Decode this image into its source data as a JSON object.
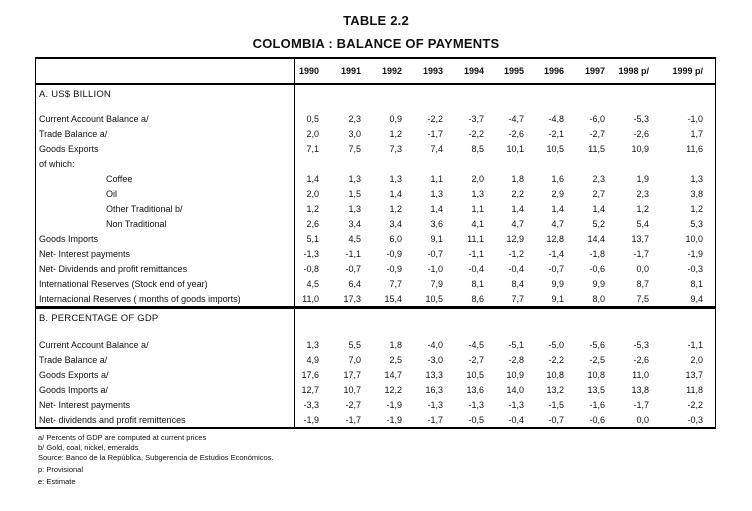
{
  "page": {
    "title_line1": "TABLE 2.2",
    "title_line2": "COLOMBIA : BALANCE OF PAYMENTS"
  },
  "table": {
    "col_headers": [
      "1990",
      "1991",
      "1992",
      "1993",
      "1994",
      "1995",
      "1996",
      "1997",
      "1998 p/",
      "1999 p/"
    ],
    "sections": [
      {
        "heading": "A. US$ BILLION",
        "rows": [
          {
            "label": "Current Account Balance  a/",
            "indent": 0,
            "values": [
              "0,5",
              "2,3",
              "0,9",
              "-2,2",
              "-3,7",
              "-4,7",
              "-4,8",
              "-6,0",
              "-5,3",
              "-1,0"
            ]
          },
          {
            "label": "Trade Balance  a/",
            "indent": 0,
            "values": [
              "2,0",
              "3,0",
              "1,2",
              "-1,7",
              "-2,2",
              "-2,6",
              "-2,1",
              "-2,7",
              "-2,6",
              "1,7"
            ]
          },
          {
            "label": "Goods Exports",
            "indent": 0,
            "values": [
              "7,1",
              "7,5",
              "7,3",
              "7,4",
              "8,5",
              "10,1",
              "10,5",
              "11,5",
              "10,9",
              "11,6"
            ]
          },
          {
            "label": "of which:",
            "indent": 0,
            "values": []
          },
          {
            "label": "Coffee",
            "indent": 1,
            "values": [
              "1,4",
              "1,3",
              "1,3",
              "1,1",
              "2,0",
              "1,8",
              "1,6",
              "2,3",
              "1,9",
              "1,3"
            ]
          },
          {
            "label": "Oil",
            "indent": 1,
            "values": [
              "2,0",
              "1,5",
              "1,4",
              "1,3",
              "1,3",
              "2,2",
              "2,9",
              "2,7",
              "2,3",
              "3,8"
            ]
          },
          {
            "label": "Other Traditional  b/",
            "indent": 1,
            "values": [
              "1,2",
              "1,3",
              "1,2",
              "1,4",
              "1,1",
              "1,4",
              "1,4",
              "1,4",
              "1,2",
              "1,2"
            ]
          },
          {
            "label": "Non Traditional",
            "indent": 1,
            "values": [
              "2,6",
              "3,4",
              "3,4",
              "3,6",
              "4,1",
              "4,7",
              "4,7",
              "5,2",
              "5,4",
              "5,3"
            ]
          },
          {
            "label": "Goods Imports",
            "indent": 0,
            "values": [
              "5,1",
              "4,5",
              "6,0",
              "9,1",
              "11,1",
              "12,9",
              "12,8",
              "14,4",
              "13,7",
              "10,0"
            ]
          },
          {
            "label": "Net- Interest payments",
            "indent": 0,
            "values": [
              "-1,3",
              "-1,1",
              "-0,9",
              "-0,7",
              "-1,1",
              "-1,2",
              "-1,4",
              "-1,8",
              "-1,7",
              "-1,9"
            ]
          },
          {
            "label": "Net- Dividends and profit remittances",
            "indent": 0,
            "values": [
              "-0,8",
              "-0,7",
              "-0,9",
              "-1,0",
              "-0,4",
              "-0,4",
              "-0,7",
              "-0,6",
              "0,0",
              "-0,3"
            ]
          },
          {
            "label": "International Reserves  (Stock end of year)",
            "indent": 0,
            "values": [
              "4,5",
              "6,4",
              "7,7",
              "7,9",
              "8,1",
              "8,4",
              "9,9",
              "9,9",
              "8,7",
              "8,1"
            ]
          },
          {
            "label": "Internacional Reserves  ( months of goods imports)",
            "indent": 0,
            "values": [
              "11,0",
              "17,3",
              "15,4",
              "10,5",
              "8,6",
              "7,7",
              "9,1",
              "8,0",
              "7,5",
              "9,4"
            ]
          }
        ]
      },
      {
        "heading": "B. PERCENTAGE OF GDP",
        "rows": [
          {
            "label": "Current Account Balance  a/",
            "indent": 0,
            "values": [
              "1,3",
              "5,5",
              "1,8",
              "-4,0",
              "-4,5",
              "-5,1",
              "-5,0",
              "-5,6",
              "-5,3",
              "-1,1"
            ]
          },
          {
            "label": "Trade Balance  a/",
            "indent": 0,
            "values": [
              "4,9",
              "7,0",
              "2,5",
              "-3,0",
              "-2,7",
              "-2,8",
              "-2,2",
              "-2,5",
              "-2,6",
              "2,0"
            ]
          },
          {
            "label": "Goods Exports a/",
            "indent": 0,
            "values": [
              "17,6",
              "17,7",
              "14,7",
              "13,3",
              "10,5",
              "10,9",
              "10,8",
              "10,8",
              "11,0",
              "13,7"
            ]
          },
          {
            "label": "Goods Imports a/",
            "indent": 0,
            "values": [
              "12,7",
              "10,7",
              "12,2",
              "16,3",
              "13,6",
              "14,0",
              "13,2",
              "13,5",
              "13,8",
              "11,8"
            ]
          },
          {
            "label": "Net- Interest payments",
            "indent": 0,
            "values": [
              "-3,3",
              "-2,7",
              "-1,9",
              "-1,3",
              "-1,3",
              "-1,3",
              "-1,5",
              "-1,6",
              "-1,7",
              "-2,2"
            ]
          },
          {
            "label": "Net- dividends and profit remittences",
            "indent": 0,
            "values": [
              "-1,9",
              "-1,7",
              "-1,9",
              "-1,7",
              "-0,5",
              "-0,4",
              "-0,7",
              "-0,6",
              "0,0",
              "-0,3"
            ]
          }
        ]
      }
    ]
  },
  "footnotes": [
    "a/ Percents of GDP are computed at current prices",
    "b/ Gold, coal, nickel, emeralds",
    "Source: Banco de la República, Subgerencia de Estudios Económicos.",
    "p: Provisional",
    "e: Estimate"
  ]
}
